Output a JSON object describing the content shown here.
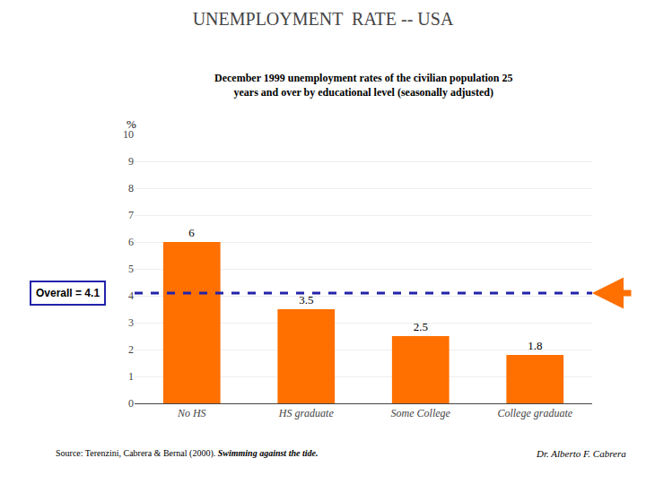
{
  "chart_data": {
    "type": "bar",
    "title": "UNEMPLOYMENT  RATE -- USA",
    "subtitle": [
      "December 1999 unemployment rates of the civilian population 25",
      "years and over by educational level (seasonally adjusted)"
    ],
    "ylabel": "%",
    "categories": [
      "No HS",
      "HS graduate",
      "Some College",
      "College graduate"
    ],
    "values": [
      6.0,
      3.5,
      2.5,
      1.8
    ],
    "color": "#FF7000",
    "data_labels": true,
    "overall": {
      "value": 4.1,
      "label": "Overall = 4.1",
      "color": "#2222AA"
    },
    "ylim": [
      0,
      10
    ],
    "yticks": [
      0,
      1,
      2,
      3,
      4,
      5,
      6,
      7,
      8,
      9,
      10
    ],
    "grid": true,
    "source": [
      "Source: Terenzini, Cabrera & Bernal (2000). ",
      "Swimming against the tide."
    ],
    "credit": "Dr. Alberto F. Cabrera"
  }
}
